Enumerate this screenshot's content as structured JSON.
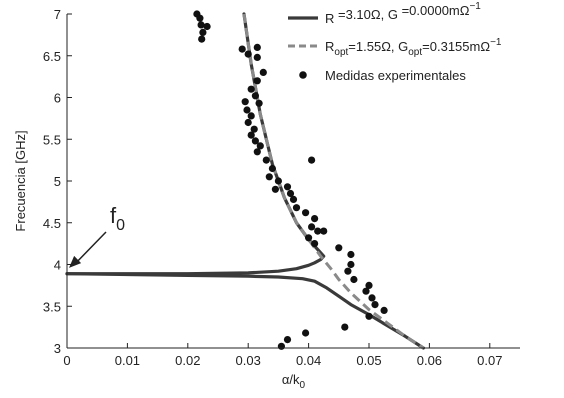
{
  "chart_data": {
    "type": "line",
    "xlabel": {
      "main": "α/k",
      "sub": "0"
    },
    "ylabel": "Frecuencia [GHz]",
    "xlim": [
      0,
      0.075
    ],
    "ylim": [
      3,
      7
    ],
    "xticks": [
      {
        "v": 0,
        "label": "0"
      },
      {
        "v": 0.01,
        "label": "0.01"
      },
      {
        "v": 0.02,
        "label": "0.02"
      },
      {
        "v": 0.03,
        "label": "0.03"
      },
      {
        "v": 0.04,
        "label": "0.04"
      },
      {
        "v": 0.05,
        "label": "0.05"
      },
      {
        "v": 0.06,
        "label": "0.06"
      },
      {
        "v": 0.07,
        "label": "0.07"
      }
    ],
    "yticks": [
      {
        "v": 3,
        "label": "3"
      },
      {
        "v": 3.5,
        "label": "3.5"
      },
      {
        "v": 4,
        "label": "4"
      },
      {
        "v": 4.5,
        "label": "4.5"
      },
      {
        "v": 5,
        "label": "5"
      },
      {
        "v": 5.5,
        "label": "5.5"
      },
      {
        "v": 6,
        "label": "6"
      },
      {
        "v": 6.5,
        "label": "6.5"
      },
      {
        "v": 7,
        "label": "7"
      }
    ],
    "grid": false,
    "legend_position": "top-right",
    "annotation": {
      "main": "f",
      "sub": "0",
      "points_to": [
        0,
        3.96
      ]
    },
    "series": [
      {
        "name": "R   =3.10Ω, G   =0.0000mΩ⁻¹",
        "legend": {
          "a": "R",
          "a_sub": "",
          "mid": "   =3.10Ω, G",
          "b_sub": "",
          "tail": "   =0.0000mΩ",
          "sup": "−1"
        },
        "style": "solid",
        "color": "#3a3a3a",
        "branches": [
          [
            [
              0,
              3.89
            ],
            [
              0.02,
              3.89
            ],
            [
              0.03,
              3.9
            ],
            [
              0.035,
              3.92
            ],
            [
              0.038,
              3.95
            ],
            [
              0.04,
              3.99
            ],
            [
              0.041,
              4.02
            ],
            [
              0.042,
              4.06
            ],
            [
              0.0425,
              4.1
            ],
            [
              0.042,
              4.14
            ],
            [
              0.04,
              4.3
            ],
            [
              0.038,
              4.5
            ],
            [
              0.036,
              4.8
            ],
            [
              0.034,
              5.2
            ],
            [
              0.032,
              5.8
            ],
            [
              0.0305,
              6.4
            ],
            [
              0.0293,
              7.0
            ]
          ],
          [
            [
              0,
              3.89
            ],
            [
              0.02,
              3.87
            ],
            [
              0.03,
              3.86
            ],
            [
              0.035,
              3.85
            ],
            [
              0.039,
              3.83
            ],
            [
              0.041,
              3.8
            ],
            [
              0.043,
              3.72
            ],
            [
              0.045,
              3.62
            ],
            [
              0.047,
              3.52
            ],
            [
              0.05,
              3.4
            ],
            [
              0.053,
              3.27
            ],
            [
              0.056,
              3.14
            ],
            [
              0.059,
              3.0
            ]
          ]
        ]
      },
      {
        "name": "Ropt=1.55Ω, Gopt=0.3155mΩ⁻¹",
        "legend": {
          "a": "R",
          "a_sub": "opt",
          "mid": "=1.55Ω, G",
          "b_sub": "opt",
          "tail": "=0.3155mΩ",
          "sup": "−1"
        },
        "style": "dashed",
        "color": "#8a8a8a",
        "branches": [
          [
            [
              0.0293,
              7.0
            ],
            [
              0.0305,
              6.4
            ],
            [
              0.032,
              5.8
            ],
            [
              0.034,
              5.2
            ],
            [
              0.036,
              4.8
            ],
            [
              0.038,
              4.5
            ],
            [
              0.04,
              4.3
            ],
            [
              0.042,
              4.1
            ],
            [
              0.0437,
              3.95
            ],
            [
              0.045,
              3.82
            ],
            [
              0.047,
              3.66
            ],
            [
              0.05,
              3.46
            ],
            [
              0.053,
              3.3
            ],
            [
              0.056,
              3.14
            ],
            [
              0.059,
              3.0
            ]
          ]
        ]
      }
    ],
    "scatter": {
      "name": "Medidas experimentales",
      "color": "#111111",
      "points": [
        [
          0.0215,
          7.0
        ],
        [
          0.022,
          6.95
        ],
        [
          0.0222,
          6.87
        ],
        [
          0.0232,
          6.85
        ],
        [
          0.0225,
          6.78
        ],
        [
          0.0223,
          6.7
        ],
        [
          0.029,
          6.58
        ],
        [
          0.0315,
          6.6
        ],
        [
          0.03,
          6.52
        ],
        [
          0.0315,
          6.48
        ],
        [
          0.0325,
          6.3
        ],
        [
          0.0315,
          6.2
        ],
        [
          0.0305,
          6.1
        ],
        [
          0.0312,
          6.02
        ],
        [
          0.0295,
          5.95
        ],
        [
          0.0318,
          5.93
        ],
        [
          0.0298,
          5.85
        ],
        [
          0.0305,
          5.78
        ],
        [
          0.03,
          5.7
        ],
        [
          0.031,
          5.62
        ],
        [
          0.0305,
          5.55
        ],
        [
          0.0312,
          5.48
        ],
        [
          0.032,
          5.42
        ],
        [
          0.0315,
          5.35
        ],
        [
          0.033,
          5.25
        ],
        [
          0.034,
          5.15
        ],
        [
          0.0335,
          5.05
        ],
        [
          0.035,
          5.0
        ],
        [
          0.0345,
          4.9
        ],
        [
          0.0365,
          4.93
        ],
        [
          0.037,
          4.85
        ],
        [
          0.0375,
          4.78
        ],
        [
          0.038,
          4.68
        ],
        [
          0.0395,
          4.62
        ],
        [
          0.041,
          4.55
        ],
        [
          0.0405,
          4.45
        ],
        [
          0.0415,
          4.4
        ],
        [
          0.04,
          4.32
        ],
        [
          0.041,
          4.25
        ],
        [
          0.0425,
          4.4
        ],
        [
          0.0405,
          5.25
        ],
        [
          0.045,
          4.2
        ],
        [
          0.047,
          4.12
        ],
        [
          0.047,
          4.0
        ],
        [
          0.0465,
          3.92
        ],
        [
          0.0475,
          3.82
        ],
        [
          0.05,
          3.75
        ],
        [
          0.0495,
          3.68
        ],
        [
          0.0505,
          3.6
        ],
        [
          0.051,
          3.52
        ],
        [
          0.0525,
          3.45
        ],
        [
          0.05,
          3.38
        ],
        [
          0.046,
          3.25
        ],
        [
          0.0395,
          3.18
        ],
        [
          0.0365,
          3.1
        ],
        [
          0.0355,
          3.02
        ]
      ]
    }
  }
}
